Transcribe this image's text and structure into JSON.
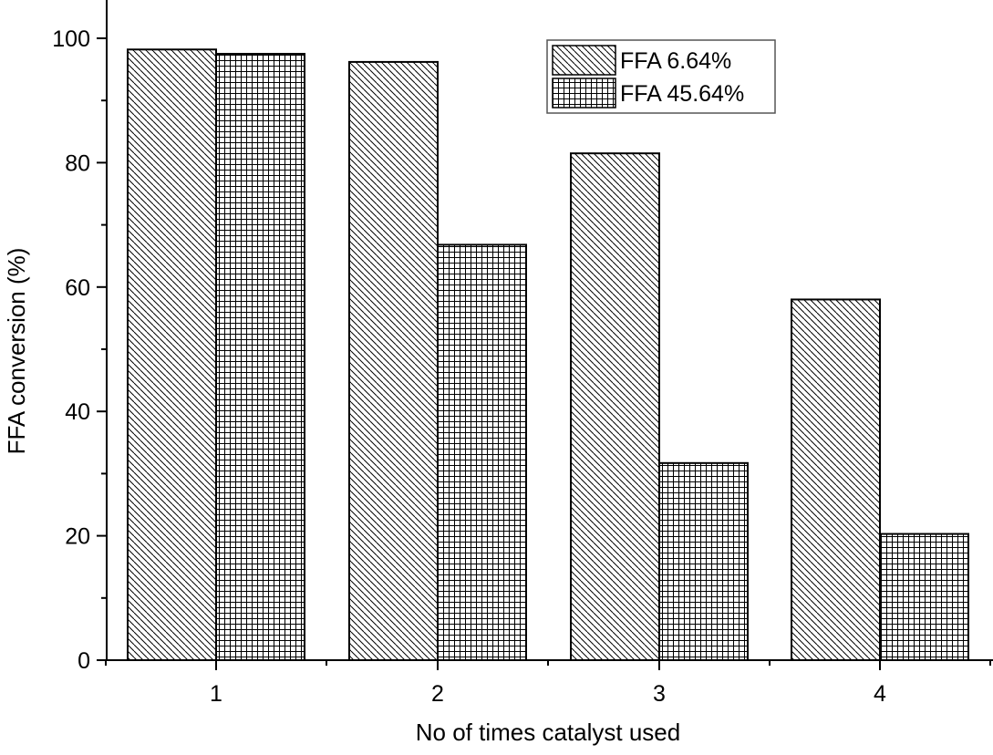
{
  "chart_data": {
    "type": "bar",
    "title": "",
    "xlabel": "No of times catalyst used",
    "ylabel": "FFA conversion (%)",
    "categories": [
      "1",
      "2",
      "3",
      "4"
    ],
    "series": [
      {
        "name": "FFA 6.64%",
        "values": [
          98.2,
          96.2,
          81.5,
          58.0
        ],
        "pattern": "diagonal-hatch"
      },
      {
        "name": "FFA 45.64%",
        "values": [
          97.5,
          66.8,
          31.7,
          20.3
        ],
        "pattern": "grid-hatch"
      }
    ],
    "ylim": [
      0,
      100
    ],
    "yticks": [
      0,
      20,
      40,
      60,
      80,
      100
    ],
    "ytick_labels": [
      "0",
      "20",
      "40",
      "60",
      "80",
      "100"
    ],
    "legend_position": "top-right",
    "grid": false,
    "colors": {
      "stroke": "#000000",
      "background": "#ffffff"
    }
  }
}
